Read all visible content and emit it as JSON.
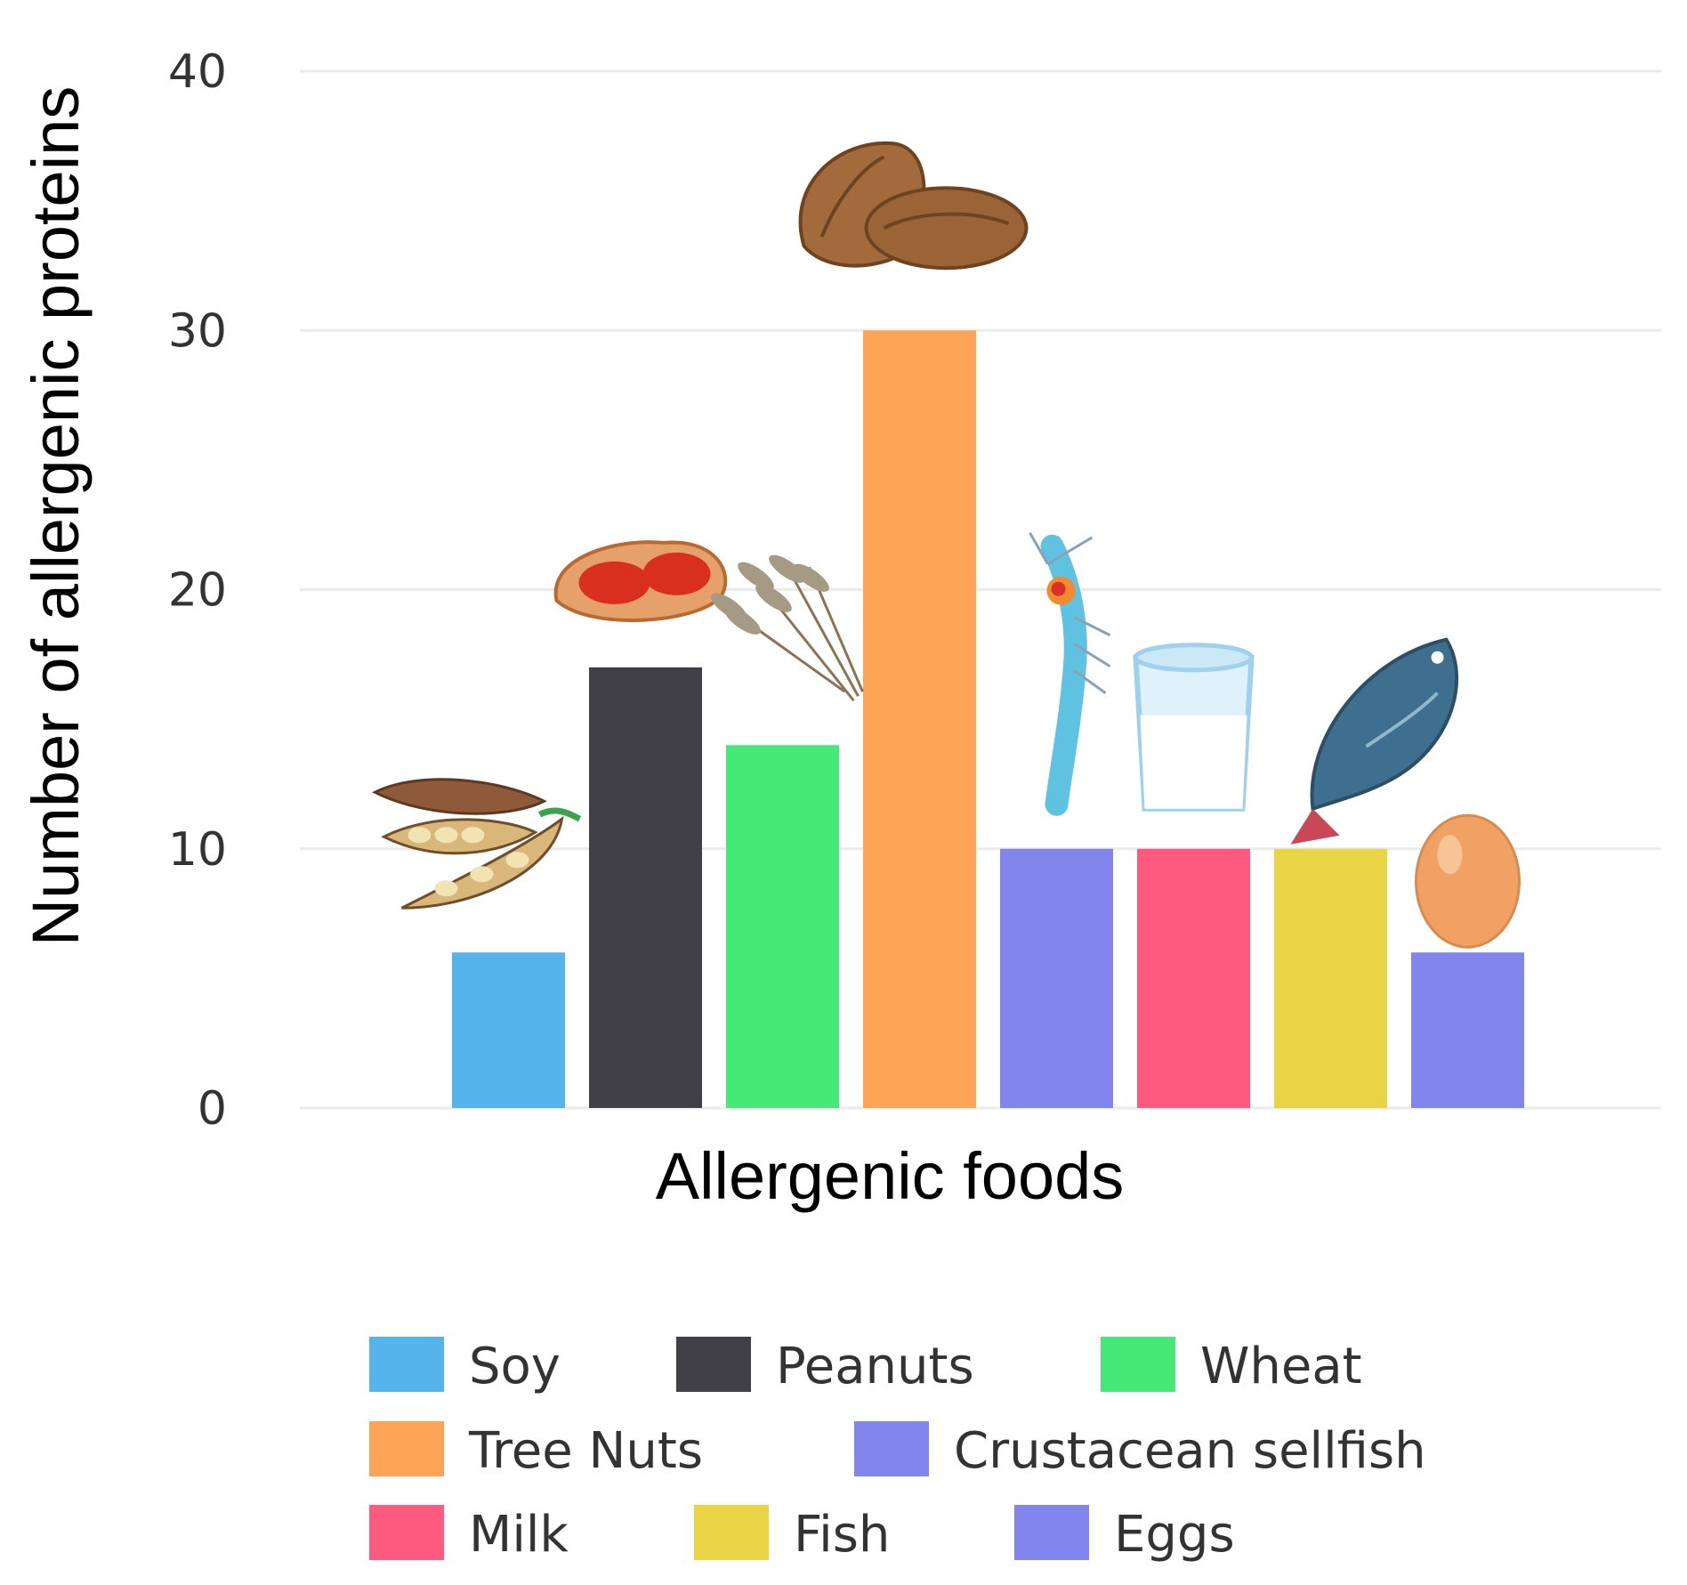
{
  "chart_data": {
    "type": "bar",
    "categories": [
      "Soy",
      "Peanuts",
      "Wheat",
      "Tree Nuts",
      "Crustacean sellfish",
      "Milk",
      "Fish",
      "Eggs"
    ],
    "values": [
      6,
      17,
      14,
      30,
      10,
      10,
      10,
      6
    ],
    "colors": [
      "#56b4ec",
      "#414046",
      "#46e978",
      "#fea457",
      "#8185ec",
      "#fe5a80",
      "#e9d446",
      "#8185ec"
    ],
    "icons": [
      "soybean-pods-icon",
      "peanut-icon",
      "wheat-icon",
      "walnut-icon",
      "shrimp-icon",
      "milk-glass-icon",
      "fish-icon",
      "egg-icon"
    ],
    "icon_on_bar": [
      0,
      1,
      2,
      3,
      4,
      5,
      6,
      7
    ],
    "xlabel": "Allergenic foods",
    "ylabel": "Number of allergenic proteins",
    "ylim": [
      0,
      40
    ],
    "yticks": [
      "0",
      "10",
      "20",
      "30",
      "40"
    ],
    "ytick_values": [
      0,
      10,
      20,
      30,
      40
    ],
    "grid": true,
    "legend": {
      "placement": "bottom",
      "entries": [
        "Soy",
        "Peanuts",
        "Wheat",
        "Tree Nuts",
        "Crustacean sellfish",
        "Milk",
        "Fish",
        "Eggs"
      ]
    }
  }
}
